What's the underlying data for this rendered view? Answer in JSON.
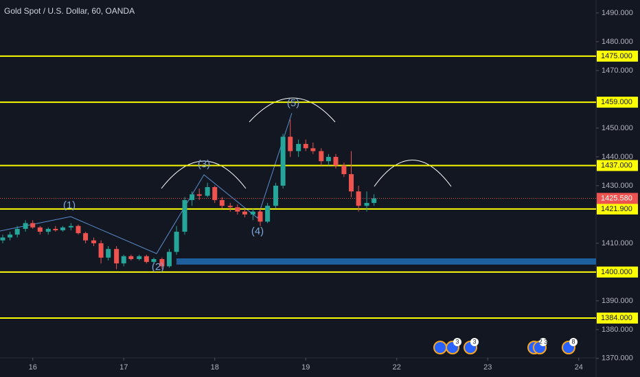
{
  "title": "Gold Spot / U.S. Dollar, 60, OANDA",
  "chart_data": {
    "type": "candlestick",
    "x": [
      15.67,
      15.75,
      15.83,
      15.92,
      16.0,
      16.08,
      16.17,
      16.25,
      16.33,
      16.42,
      16.5,
      16.58,
      16.67,
      16.75,
      16.83,
      16.92,
      17.0,
      17.08,
      17.17,
      17.25,
      17.33,
      17.42,
      17.5,
      17.58,
      17.67,
      17.75,
      17.83,
      17.92,
      18.0,
      18.08,
      18.17,
      18.25,
      18.33,
      18.42,
      18.5,
      18.58,
      18.67,
      18.75,
      18.83,
      18.92,
      19.0,
      19.08,
      19.17,
      19.25,
      19.33,
      19.42,
      19.5,
      19.58,
      19.67,
      19.75
    ],
    "open": [
      1411,
      1412,
      1413,
      1415,
      1417,
      1415.5,
      1414,
      1415,
      1414.5,
      1415.5,
      1416,
      1413.5,
      1411,
      1410,
      1405,
      1408,
      1403,
      1405.5,
      1404.5,
      1405.5,
      1403.5,
      1404.5,
      1402,
      1407,
      1414,
      1425,
      1427,
      1426.5,
      1429.5,
      1425,
      1423,
      1422.5,
      1421,
      1420,
      1421,
      1417.5,
      1423,
      1430,
      1447,
      1442,
      1444.5,
      1443,
      1442,
      1438.5,
      1440,
      1437,
      1434,
      1428,
      1423,
      1424
    ],
    "high": [
      1413,
      1414,
      1416,
      1418,
      1418,
      1416,
      1415.5,
      1416,
      1416,
      1417,
      1416.5,
      1414,
      1412,
      1411,
      1409,
      1409,
      1406,
      1406,
      1406,
      1406,
      1405,
      1405,
      1408,
      1416,
      1426,
      1428,
      1429,
      1431,
      1430,
      1426,
      1424,
      1423.5,
      1422,
      1422,
      1422,
      1424,
      1431,
      1448,
      1453,
      1446,
      1446,
      1445,
      1443,
      1441,
      1441,
      1438,
      1442,
      1430,
      1428,
      1427
    ],
    "low": [
      1410,
      1411,
      1412,
      1414,
      1415,
      1413,
      1413,
      1414,
      1414,
      1414.5,
      1413,
      1410,
      1409,
      1403,
      1404,
      1401,
      1402,
      1404,
      1404,
      1403,
      1403,
      1401,
      1401.5,
      1406,
      1413,
      1423,
      1425,
      1426,
      1424,
      1422,
      1421,
      1420,
      1419,
      1418,
      1416,
      1417,
      1422,
      1429,
      1440,
      1440,
      1442,
      1441,
      1437,
      1437,
      1436,
      1433,
      1426,
      1421,
      1421,
      1423
    ],
    "close": [
      1412,
      1413,
      1415,
      1417,
      1415.5,
      1414,
      1415,
      1414.5,
      1415.5,
      1416,
      1413.5,
      1411,
      1410,
      1405,
      1408,
      1403,
      1405.5,
      1404.5,
      1405.5,
      1403.5,
      1404.5,
      1402,
      1407,
      1414,
      1425,
      1427,
      1426.5,
      1429.5,
      1425,
      1423,
      1422.5,
      1421,
      1420,
      1421,
      1417.5,
      1423,
      1430,
      1447,
      1442,
      1444.5,
      1443,
      1442,
      1438.5,
      1440,
      1437,
      1434,
      1428,
      1423,
      1424,
      1425.58
    ],
    "up_color": "#26a69a",
    "down_color": "#ef5350",
    "xlim": [
      15.64,
      22.19
    ],
    "xticks": [
      16,
      17,
      18,
      19,
      {
        "value": 20,
        "label": "22"
      },
      {
        "value": 21,
        "label": "23"
      },
      {
        "value": 22,
        "label": "24"
      }
    ],
    "ylim": [
      1370.2,
      1494.5
    ],
    "yticks": [
      {
        "value": 1490,
        "label": "1490.000"
      },
      {
        "value": 1480,
        "label": "1480.000"
      },
      {
        "value": 1470,
        "label": "1470.000"
      },
      {
        "value": 1450,
        "label": "1450.000"
      },
      {
        "value": 1440,
        "label": "1440.000"
      },
      {
        "value": 1430,
        "label": "1430.000"
      },
      {
        "value": 1410,
        "label": "1410.000"
      },
      {
        "value": 1390,
        "label": "1390.000"
      },
      {
        "value": 1380,
        "label": "1380.000"
      },
      {
        "value": 1370,
        "label": "1370.000"
      }
    ],
    "levels": [
      {
        "value": 1475,
        "label": "1475.000"
      },
      {
        "value": 1459,
        "label": "1459.000"
      },
      {
        "value": 1437,
        "label": "1437.000"
      },
      {
        "value": 1421.9,
        "label": "1421.900"
      },
      {
        "value": 1400,
        "label": "1400.000"
      },
      {
        "value": 1384,
        "label": "1384.000"
      }
    ],
    "level_color": "#ffff00",
    "last_price": {
      "value": 1425.58,
      "label": "1425.580"
    },
    "last_price_color": "#ef5350",
    "annotations": [
      "(1)",
      "(2)",
      "(3)",
      "(4)",
      "(5)"
    ],
    "event_badges": [
      "3",
      "3",
      "2 3",
      "8"
    ]
  }
}
